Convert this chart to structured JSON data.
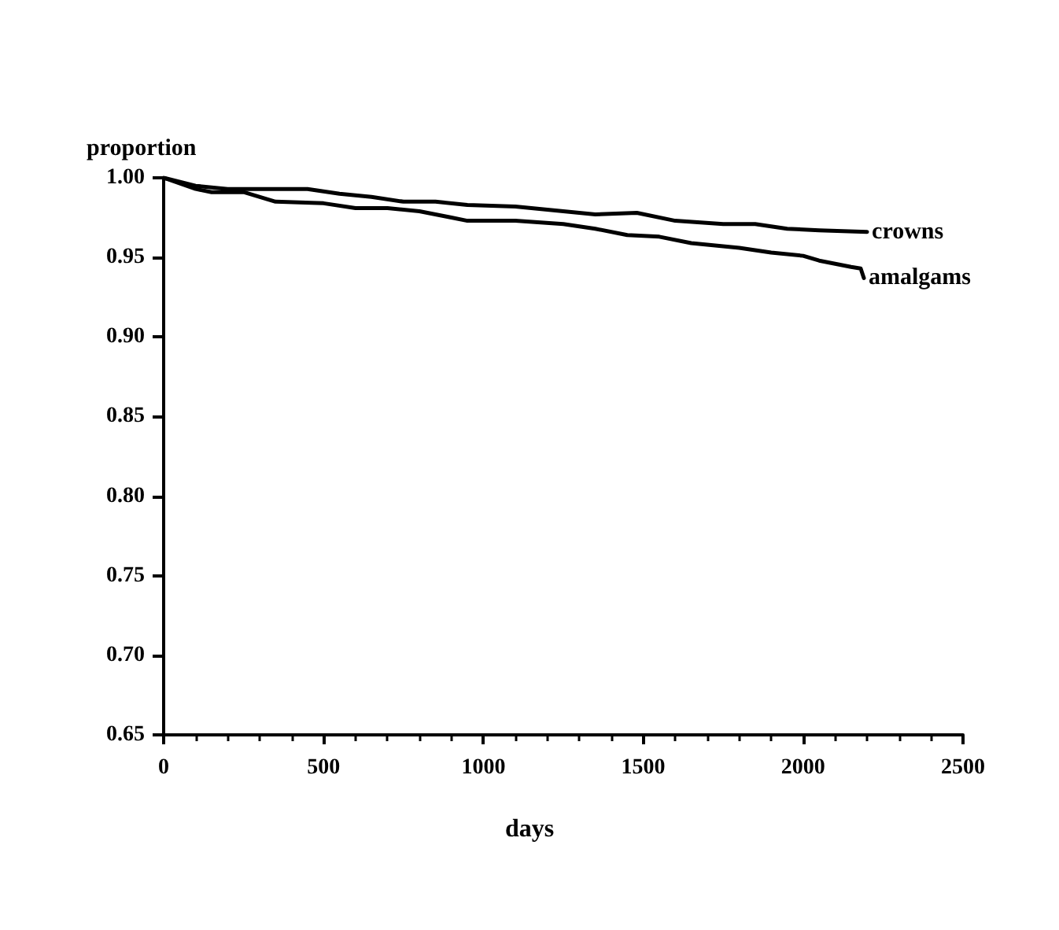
{
  "chart_data": {
    "type": "line",
    "xlabel": "days",
    "ylabel": "proportion",
    "xlim": [
      0,
      2500
    ],
    "xticks": [
      0,
      500,
      1000,
      1500,
      2000,
      2500
    ],
    "ylim": [
      0.65,
      1.0
    ],
    "yticks": [
      0.65,
      {
        "value": 0.7,
        "label": "0.70"
      },
      0.75,
      {
        "value": 0.8,
        "label": "0.80"
      },
      0.85,
      {
        "value": 0.9,
        "label": "0.90"
      },
      0.95,
      {
        "value": 1,
        "label": "1.00"
      }
    ],
    "grid": false,
    "legend": false,
    "marker": "none",
    "line_style": "solid",
    "series": [
      {
        "name": "crowns",
        "color": "#000000",
        "x": [
          0,
          100,
          200,
          300,
          450,
          550,
          650,
          750,
          850,
          950,
          1100,
          1200,
          1350,
          1480,
          1600,
          1750,
          1850,
          1950,
          2050,
          2200
        ],
        "values": [
          1.0,
          0.995,
          0.993,
          0.993,
          0.993,
          0.99,
          0.988,
          0.985,
          0.985,
          0.983,
          0.982,
          0.98,
          0.977,
          0.978,
          0.973,
          0.971,
          0.971,
          0.968,
          0.967,
          0.966
        ]
      },
      {
        "name": "amalgams",
        "color": "#000000",
        "x": [
          0,
          100,
          150,
          250,
          350,
          500,
          600,
          700,
          800,
          900,
          950,
          1100,
          1250,
          1350,
          1450,
          1550,
          1650,
          1800,
          1900,
          2000,
          2050,
          2150,
          2180,
          2190
        ],
        "values": [
          1.0,
          0.993,
          0.991,
          0.991,
          0.985,
          0.984,
          0.981,
          0.981,
          0.979,
          0.975,
          0.973,
          0.973,
          0.971,
          0.968,
          0.964,
          0.963,
          0.959,
          0.956,
          0.953,
          0.951,
          0.948,
          0.944,
          0.943,
          0.937
        ]
      }
    ]
  }
}
